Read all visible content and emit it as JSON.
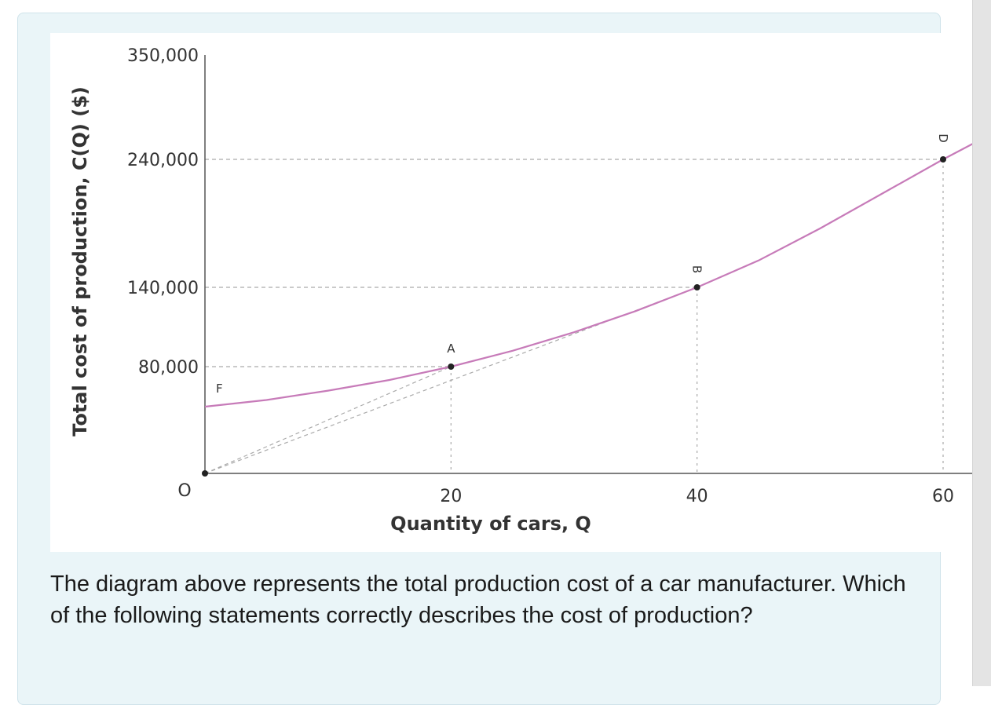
{
  "question": {
    "text": "The diagram above represents the total production cost of a car manufacturer. Which of the following statements correctly describes the cost of production?"
  },
  "chart_data": {
    "type": "line",
    "xlabel": "Quantity of cars, Q",
    "ylabel": "Total cost of production, C(Q) ($)",
    "origin_label": "O",
    "x_ticks": [
      20,
      40,
      60
    ],
    "x_tick_labels": [
      "20",
      "40",
      "60"
    ],
    "y_ticks": [
      80000,
      140000,
      240000,
      350000
    ],
    "y_tick_labels": [
      "80,000",
      "140,000",
      "240,000",
      "350,000"
    ],
    "grid": false,
    "series": [
      {
        "color": "#c77bb9",
        "x": [
          0,
          5,
          10,
          15,
          20,
          25,
          30,
          35,
          40,
          45,
          50,
          55,
          60,
          62.5
        ],
        "y": [
          50000,
          55000,
          62000,
          70000,
          80000,
          92000,
          106000,
          122000,
          140000,
          161000,
          186000,
          213000,
          240000,
          257000
        ]
      }
    ],
    "points": [
      {
        "label": "F",
        "x": 0,
        "y": 0
      },
      {
        "label": "A",
        "x": 20,
        "y": 80000
      },
      {
        "label": "B",
        "x": 40,
        "y": 140000
      },
      {
        "label": "D",
        "x": 60,
        "y": 240000
      }
    ],
    "annotations": [
      {
        "type": "dashed-ray",
        "from": [
          0,
          0
        ],
        "to": [
          20,
          80000
        ]
      },
      {
        "type": "dashed-ray",
        "from": [
          0,
          0
        ],
        "to": [
          40,
          140000
        ]
      }
    ]
  }
}
